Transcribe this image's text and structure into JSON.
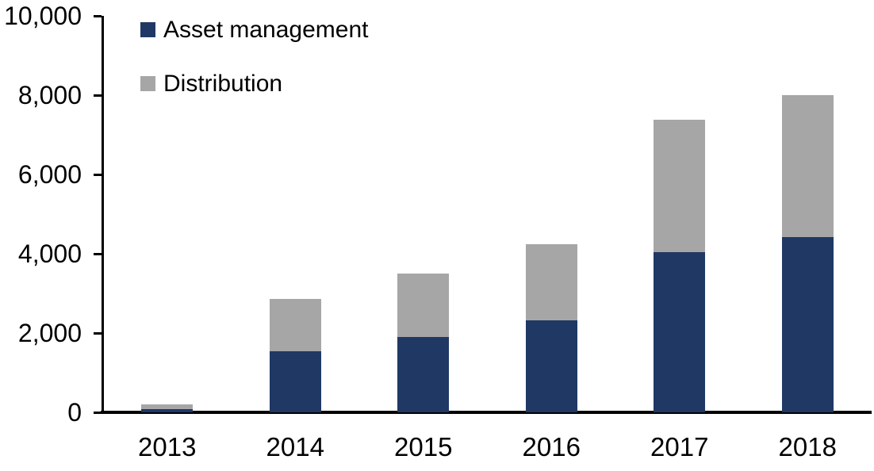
{
  "chart_data": {
    "type": "bar",
    "stacked": true,
    "title": "",
    "xlabel": "",
    "ylabel": "",
    "categories": [
      "2013",
      "2014",
      "2015",
      "2016",
      "2017",
      "2018"
    ],
    "series": [
      {
        "name": "Asset management",
        "color": "#203864",
        "values": [
          90,
          1550,
          1900,
          2320,
          4040,
          4420
        ]
      },
      {
        "name": "Distribution",
        "color": "#A6A6A6",
        "values": [
          110,
          1320,
          1600,
          1930,
          3340,
          3580
        ]
      }
    ],
    "totals": [
      200,
      2870,
      3500,
      4250,
      7380,
      8000
    ],
    "ylim": [
      0,
      10000
    ],
    "ytick_interval": 2000,
    "ytick_labels": [
      "0",
      "2,000",
      "4,000",
      "6,000",
      "8,000",
      "10,000"
    ],
    "grid": false,
    "legend_position": "top-left",
    "axis_color": "#000000",
    "background_color": "#FFFFFF",
    "text_color": "#000000"
  }
}
